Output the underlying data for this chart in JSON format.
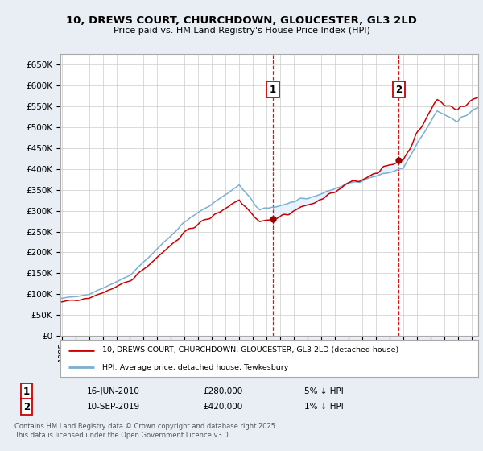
{
  "title": "10, DREWS COURT, CHURCHDOWN, GLOUCESTER, GL3 2LD",
  "subtitle": "Price paid vs. HM Land Registry's House Price Index (HPI)",
  "ylim": [
    0,
    675000
  ],
  "yticks": [
    0,
    50000,
    100000,
    150000,
    200000,
    250000,
    300000,
    350000,
    400000,
    450000,
    500000,
    550000,
    600000,
    650000
  ],
  "ytick_labels": [
    "£0",
    "£50K",
    "£100K",
    "£150K",
    "£200K",
    "£250K",
    "£300K",
    "£350K",
    "£400K",
    "£450K",
    "£500K",
    "£550K",
    "£600K",
    "£650K"
  ],
  "xlim_start": 1994.9,
  "xlim_end": 2025.5,
  "property_line_color": "#cc0000",
  "hpi_line_color": "#7ab0d4",
  "hpi_fill_color": "#ddeeff",
  "property_label": "10, DREWS COURT, CHURCHDOWN, GLOUCESTER, GL3 2LD (detached house)",
  "hpi_label": "HPI: Average price, detached house, Tewkesbury",
  "sale1_year": 2010.46,
  "sale1_price": 280000,
  "sale2_year": 2019.69,
  "sale2_price": 420000,
  "marker_color": "#990000",
  "vline_color": "#cc0000",
  "background_color": "#e8eef4",
  "plot_bg_color": "#ffffff",
  "grid_color": "#cccccc",
  "footer_text": "Contains HM Land Registry data © Crown copyright and database right 2025.\nThis data is licensed under the Open Government Licence v3.0.",
  "legend1_date": "16-JUN-2010",
  "legend1_price": "£280,000",
  "legend1_note": "5% ↓ HPI",
  "legend2_date": "10-SEP-2019",
  "legend2_price": "£420,000",
  "legend2_note": "1% ↓ HPI"
}
